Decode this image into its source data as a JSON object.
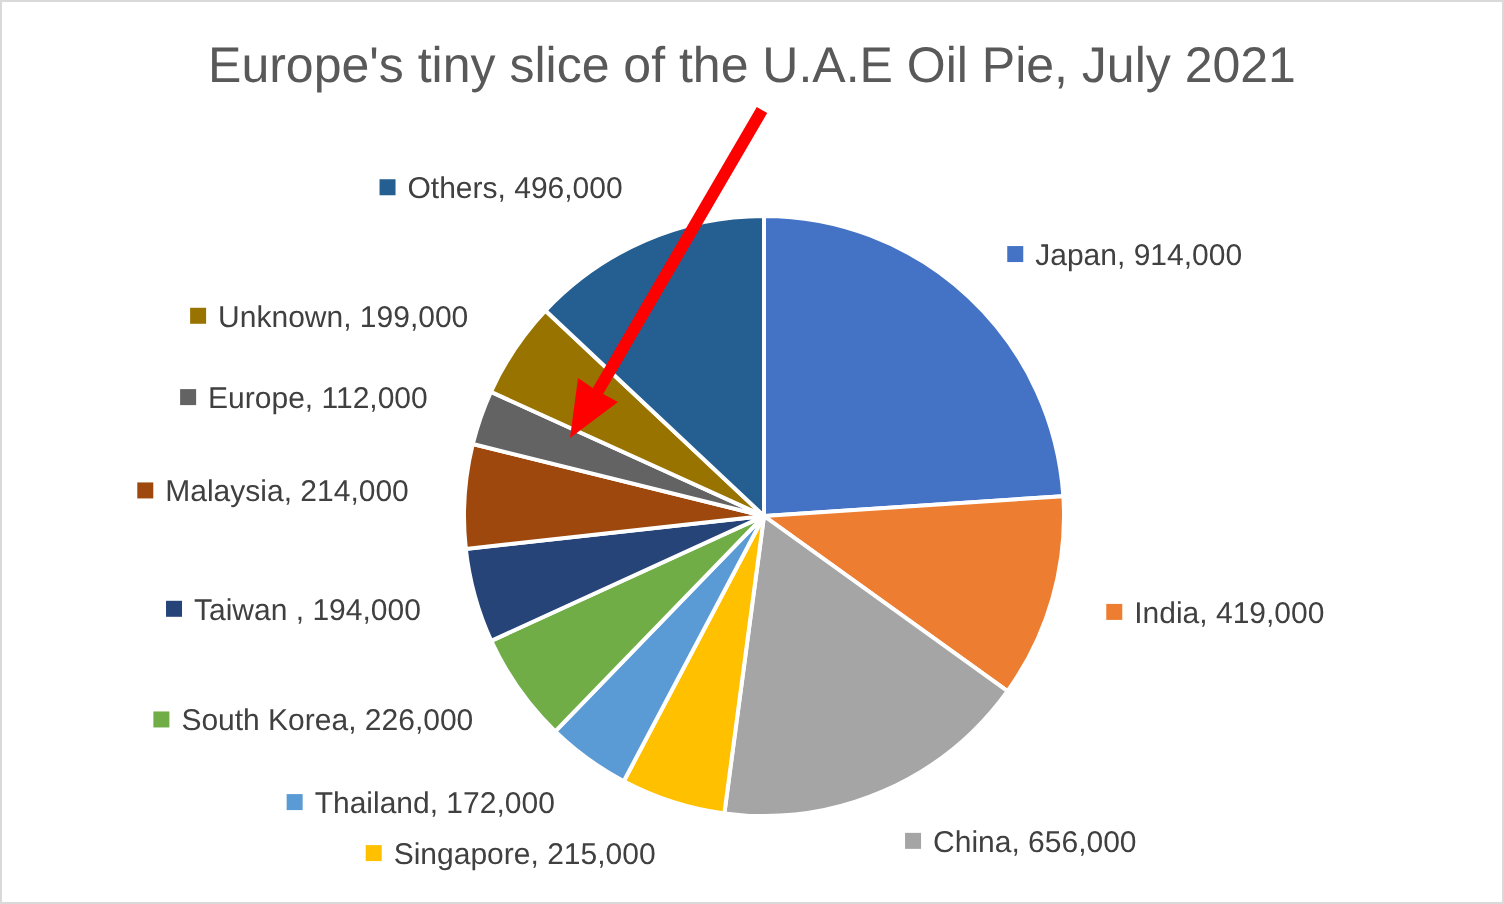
{
  "chart_data": {
    "type": "pie",
    "title": "Europe's tiny slice of the U.A.E Oil Pie, July 2021",
    "categories": [
      "Japan",
      "India",
      "China",
      "Singapore",
      "Thailand",
      "South Korea",
      "Taiwan ",
      "Malaysia",
      "Europe",
      "Unknown",
      "Others"
    ],
    "values": [
      914000,
      419000,
      656000,
      215000,
      172000,
      226000,
      194000,
      214000,
      112000,
      199000,
      496000
    ],
    "colors": [
      "#4472c4",
      "#ed7d31",
      "#a5a5a5",
      "#ffc000",
      "#5b9bd5",
      "#70ad47",
      "#264478",
      "#9e480e",
      "#636363",
      "#997300",
      "#255e91"
    ],
    "value_labels": [
      "914,000",
      "419,000",
      "656,000",
      "215,000",
      "172,000",
      "226,000",
      "194,000",
      "214,000",
      "112,000",
      "199,000",
      "496,000"
    ],
    "legend": "center"
  }
}
